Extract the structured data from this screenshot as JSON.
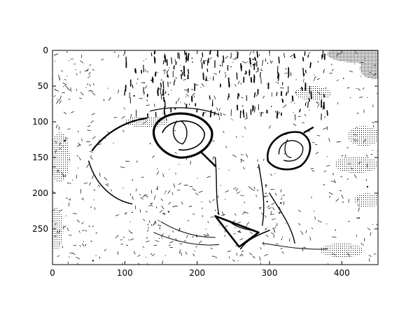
{
  "chart_data": {
    "type": "heatmap",
    "title": "",
    "xlabel": "",
    "ylabel": "",
    "xlim": [
      0,
      450
    ],
    "ylim": [
      300,
      0
    ],
    "y_inverted": true,
    "grid": false,
    "colormap": "grayscale dithered",
    "x_ticks": [
      {
        "value": 0,
        "label": "0"
      },
      {
        "value": 100,
        "label": "100"
      },
      {
        "value": 200,
        "label": "200"
      },
      {
        "value": 300,
        "label": "300"
      },
      {
        "value": 400,
        "label": "400"
      }
    ],
    "y_ticks": [
      {
        "value": 0,
        "label": "0"
      },
      {
        "value": 50,
        "label": "50"
      },
      {
        "value": 100,
        "label": "100"
      },
      {
        "value": 150,
        "label": "150"
      },
      {
        "value": 200,
        "label": "200"
      },
      {
        "value": 250,
        "label": "250"
      }
    ],
    "image_content": "cat-face-edge-map",
    "features": [
      {
        "name": "left-eye",
        "cx": 180,
        "cy": 117,
        "rx": 40,
        "ry": 33
      },
      {
        "name": "right-eye",
        "cx": 328,
        "cy": 140,
        "rx": 30,
        "ry": 28
      },
      {
        "name": "nose",
        "x": [
          225,
          285,
          258
        ],
        "y": [
          232,
          255,
          275
        ]
      }
    ]
  }
}
